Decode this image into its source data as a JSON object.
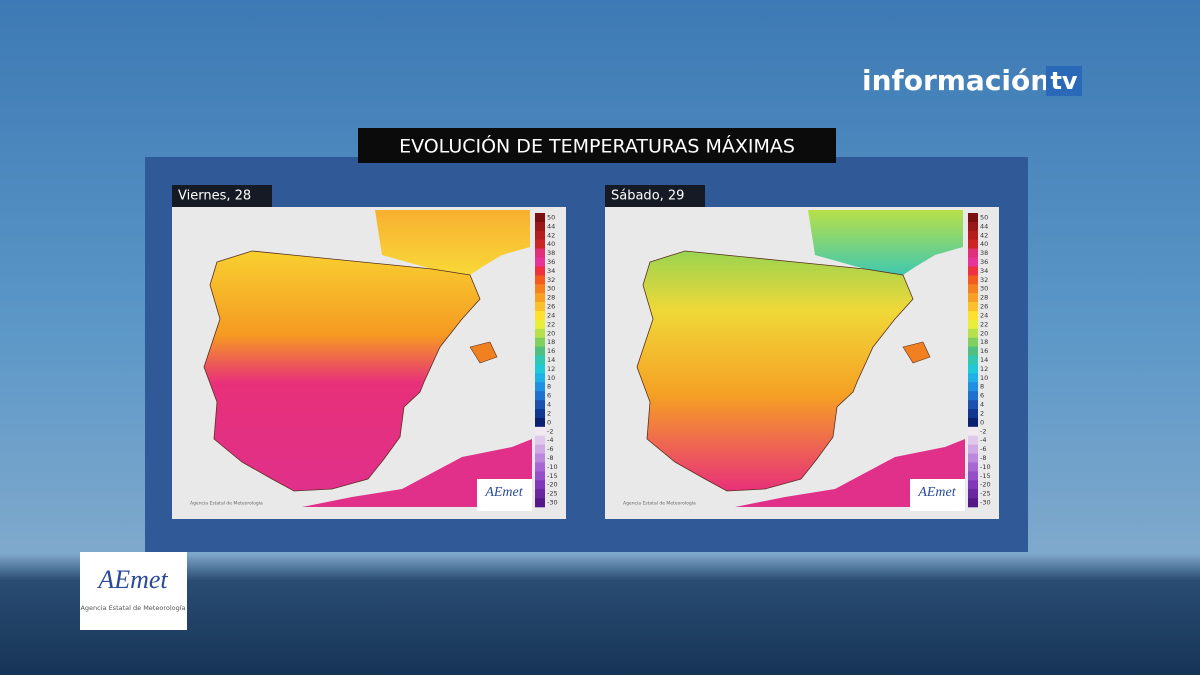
{
  "header": {
    "brand": "información",
    "brand_suffix": "tv",
    "title": "EVOLUCIÓN DE TEMPERATURAS MÁXIMAS"
  },
  "panels": [
    {
      "label": "Viernes, 28",
      "logo": "AEmet",
      "credit": "Agencia Estatal de Meteorología"
    },
    {
      "label": "Sábado, 29",
      "logo": "AEmet",
      "credit": "Agencia Estatal de Meteorología"
    }
  ],
  "legend": {
    "values": [
      50,
      44,
      42,
      40,
      38,
      36,
      34,
      32,
      30,
      28,
      26,
      24,
      22,
      20,
      18,
      16,
      14,
      12,
      10,
      8,
      6,
      4,
      2,
      0,
      -2,
      -4,
      -6,
      -8,
      -10,
      -15,
      -20,
      -25,
      -30
    ],
    "colors": [
      "#7a1010",
      "#9a1818",
      "#b51e1e",
      "#cc2525",
      "#e0307a",
      "#e83399",
      "#ee3040",
      "#f25a1e",
      "#f5801e",
      "#f8a023",
      "#fbc02a",
      "#fde030",
      "#e8ee3a",
      "#b8e04a",
      "#80d060",
      "#50c080",
      "#30c8b0",
      "#20c8d8",
      "#20b0e8",
      "#2090e0",
      "#2070d0",
      "#1a50b0",
      "#103890",
      "#0a2070",
      "#f2e8f4",
      "#e0c8ec",
      "#cfa8e4",
      "#bb88dc",
      "#a868d4",
      "#9450c8",
      "#8038b8",
      "#6a28a0",
      "#551888"
    ]
  },
  "footer_logo": {
    "name": "AEmet",
    "subtitle": "Agencia Estatal de Meteorología"
  }
}
